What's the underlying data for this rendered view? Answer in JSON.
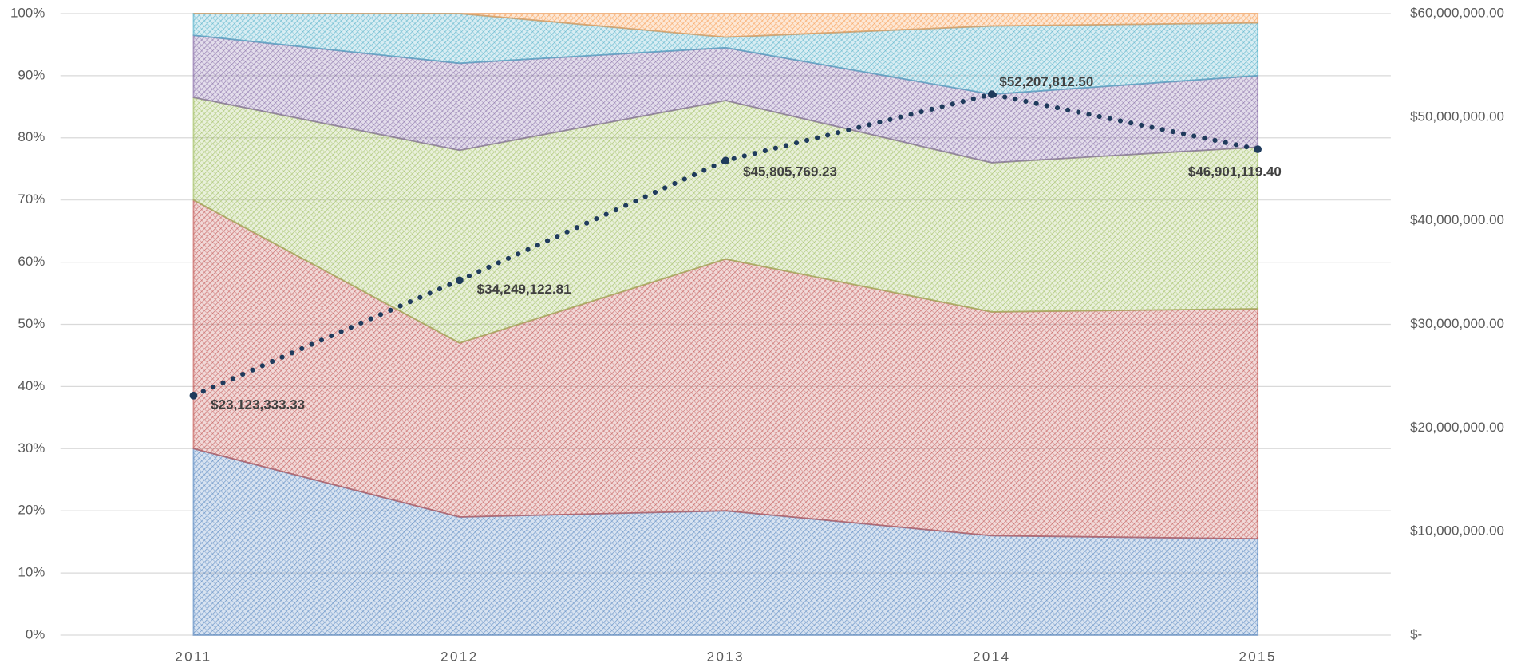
{
  "chart_data": {
    "type": "stacked_area_line",
    "categories": [
      "2011",
      "2012",
      "2013",
      "2014",
      "2015"
    ],
    "series": [
      {
        "color": "#4f81bd",
        "values": [
          30,
          19,
          20,
          16,
          15.5
        ]
      },
      {
        "color": "#c0504d",
        "values": [
          40,
          28,
          40.5,
          36,
          37
        ]
      },
      {
        "color": "#9bbb59",
        "values": [
          16.5,
          31,
          25.5,
          24,
          26
        ]
      },
      {
        "color": "#8064a2",
        "values": [
          10,
          14,
          8.5,
          11,
          11.5
        ]
      },
      {
        "color": "#4bacc6",
        "values": [
          3.5,
          8,
          1.7,
          11,
          8.5
        ]
      },
      {
        "color": "#f79646",
        "values": [
          0,
          0,
          3.8,
          2,
          1.5
        ]
      },
      {
        "color": "#1f3b5c",
        "axis": "y2",
        "values": [
          23123333.33,
          34249122.81,
          45805769.23,
          52207812.5,
          46901119.4
        ],
        "value_labels": [
          "$23,123,333.33",
          "$34,249,122.81",
          "$45,805,769.23",
          "$52,207,812.50",
          "$46,901,119.40"
        ]
      }
    ],
    "ylim": [
      0,
      100
    ],
    "yticks": [
      {
        "value": 0,
        "label": "0%"
      },
      {
        "value": 10,
        "label": "10%"
      },
      {
        "value": 20,
        "label": "20%"
      },
      {
        "value": 30,
        "label": "30%"
      },
      {
        "value": 40,
        "label": "40%"
      },
      {
        "value": 50,
        "label": "50%"
      },
      {
        "value": 60,
        "label": "60%"
      },
      {
        "value": 70,
        "label": "70%"
      },
      {
        "value": 80,
        "label": "80%"
      },
      {
        "value": 90,
        "label": "90%"
      },
      {
        "value": 100,
        "label": "100%"
      }
    ],
    "y2lim": [
      0,
      60000000
    ],
    "y2ticks": [
      {
        "value": 0,
        "label": "$-"
      },
      {
        "value": 10000000,
        "label": "$10,000,000.00"
      },
      {
        "value": 20000000,
        "label": "$20,000,000.00"
      },
      {
        "value": 30000000,
        "label": "$30,000,000.00"
      },
      {
        "value": 40000000,
        "label": "$40,000,000.00"
      },
      {
        "value": 50000000,
        "label": "$50,000,000.00"
      },
      {
        "value": 60000000,
        "label": "$60,000,000.00"
      }
    ],
    "grid": true
  }
}
